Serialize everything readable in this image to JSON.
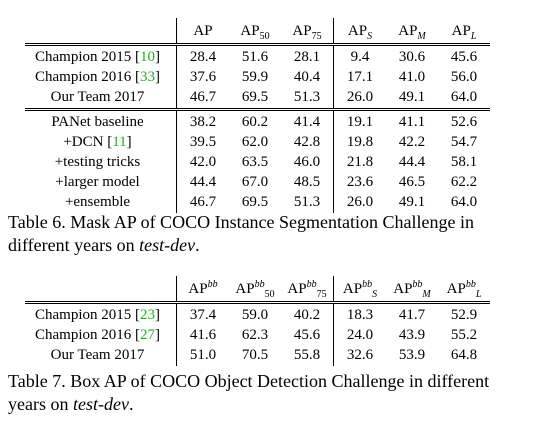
{
  "table6": {
    "headers": [
      "AP",
      "AP_50",
      "AP_75",
      "AP_S",
      "AP_M",
      "AP_L"
    ],
    "group1": [
      {
        "name": "Champion 2015 [",
        "cite": "10",
        "close": "]",
        "values": [
          "28.4",
          "51.6",
          "28.1",
          "9.4",
          "30.6",
          "45.6"
        ],
        "bold": false
      },
      {
        "name": "Champion 2016 [",
        "cite": "33",
        "close": "]",
        "values": [
          "37.6",
          "59.9",
          "40.4",
          "17.1",
          "41.0",
          "56.0"
        ],
        "bold": false
      },
      {
        "name": "Our Team 2017",
        "cite": "",
        "close": "",
        "values": [
          "46.7",
          "69.5",
          "51.3",
          "26.0",
          "49.1",
          "64.0"
        ],
        "bold": true
      }
    ],
    "group2": [
      {
        "name": "PANet baseline",
        "cite": "",
        "close": "",
        "values": [
          "38.2",
          "60.2",
          "41.4",
          "19.1",
          "41.1",
          "52.6"
        ],
        "bold": false
      },
      {
        "name": "+DCN [",
        "cite": "11",
        "close": "]",
        "values": [
          "39.5",
          "62.0",
          "42.8",
          "19.8",
          "42.2",
          "54.7"
        ],
        "bold": false
      },
      {
        "name": "+testing tricks",
        "cite": "",
        "close": "",
        "values": [
          "42.0",
          "63.5",
          "46.0",
          "21.8",
          "44.4",
          "58.1"
        ],
        "bold": false
      },
      {
        "name": "+larger model",
        "cite": "",
        "close": "",
        "values": [
          "44.4",
          "67.0",
          "48.5",
          "23.6",
          "46.5",
          "62.2"
        ],
        "bold": false
      },
      {
        "name": "+ensemble",
        "cite": "",
        "close": "",
        "values": [
          "46.7",
          "69.5",
          "51.3",
          "26.0",
          "49.1",
          "64.0"
        ],
        "bold": true
      }
    ],
    "caption": "Table 6. Mask AP of COCO Instance Segmentation Challenge in different years on",
    "caption_em": "test-dev",
    "caption_end": "."
  },
  "table7": {
    "rows": [
      {
        "name": "Champion 2015 [",
        "cite": "23",
        "close": "]",
        "values": [
          "37.4",
          "59.0",
          "40.2",
          "18.3",
          "41.7",
          "52.9"
        ],
        "bold": false
      },
      {
        "name": "Champion 2016 [",
        "cite": "27",
        "close": "]",
        "values": [
          "41.6",
          "62.3",
          "45.6",
          "24.0",
          "43.9",
          "55.2"
        ],
        "bold": false
      },
      {
        "name": "Our Team 2017",
        "cite": "",
        "close": "",
        "values": [
          "51.0",
          "70.5",
          "55.8",
          "32.6",
          "53.9",
          "64.8"
        ],
        "bold": true
      }
    ],
    "caption": "Table 7. Box AP of COCO Object Detection Challenge in different years on",
    "caption_em": "test-dev",
    "caption_end": "."
  },
  "colors": {
    "cite": "#1ab31a"
  }
}
